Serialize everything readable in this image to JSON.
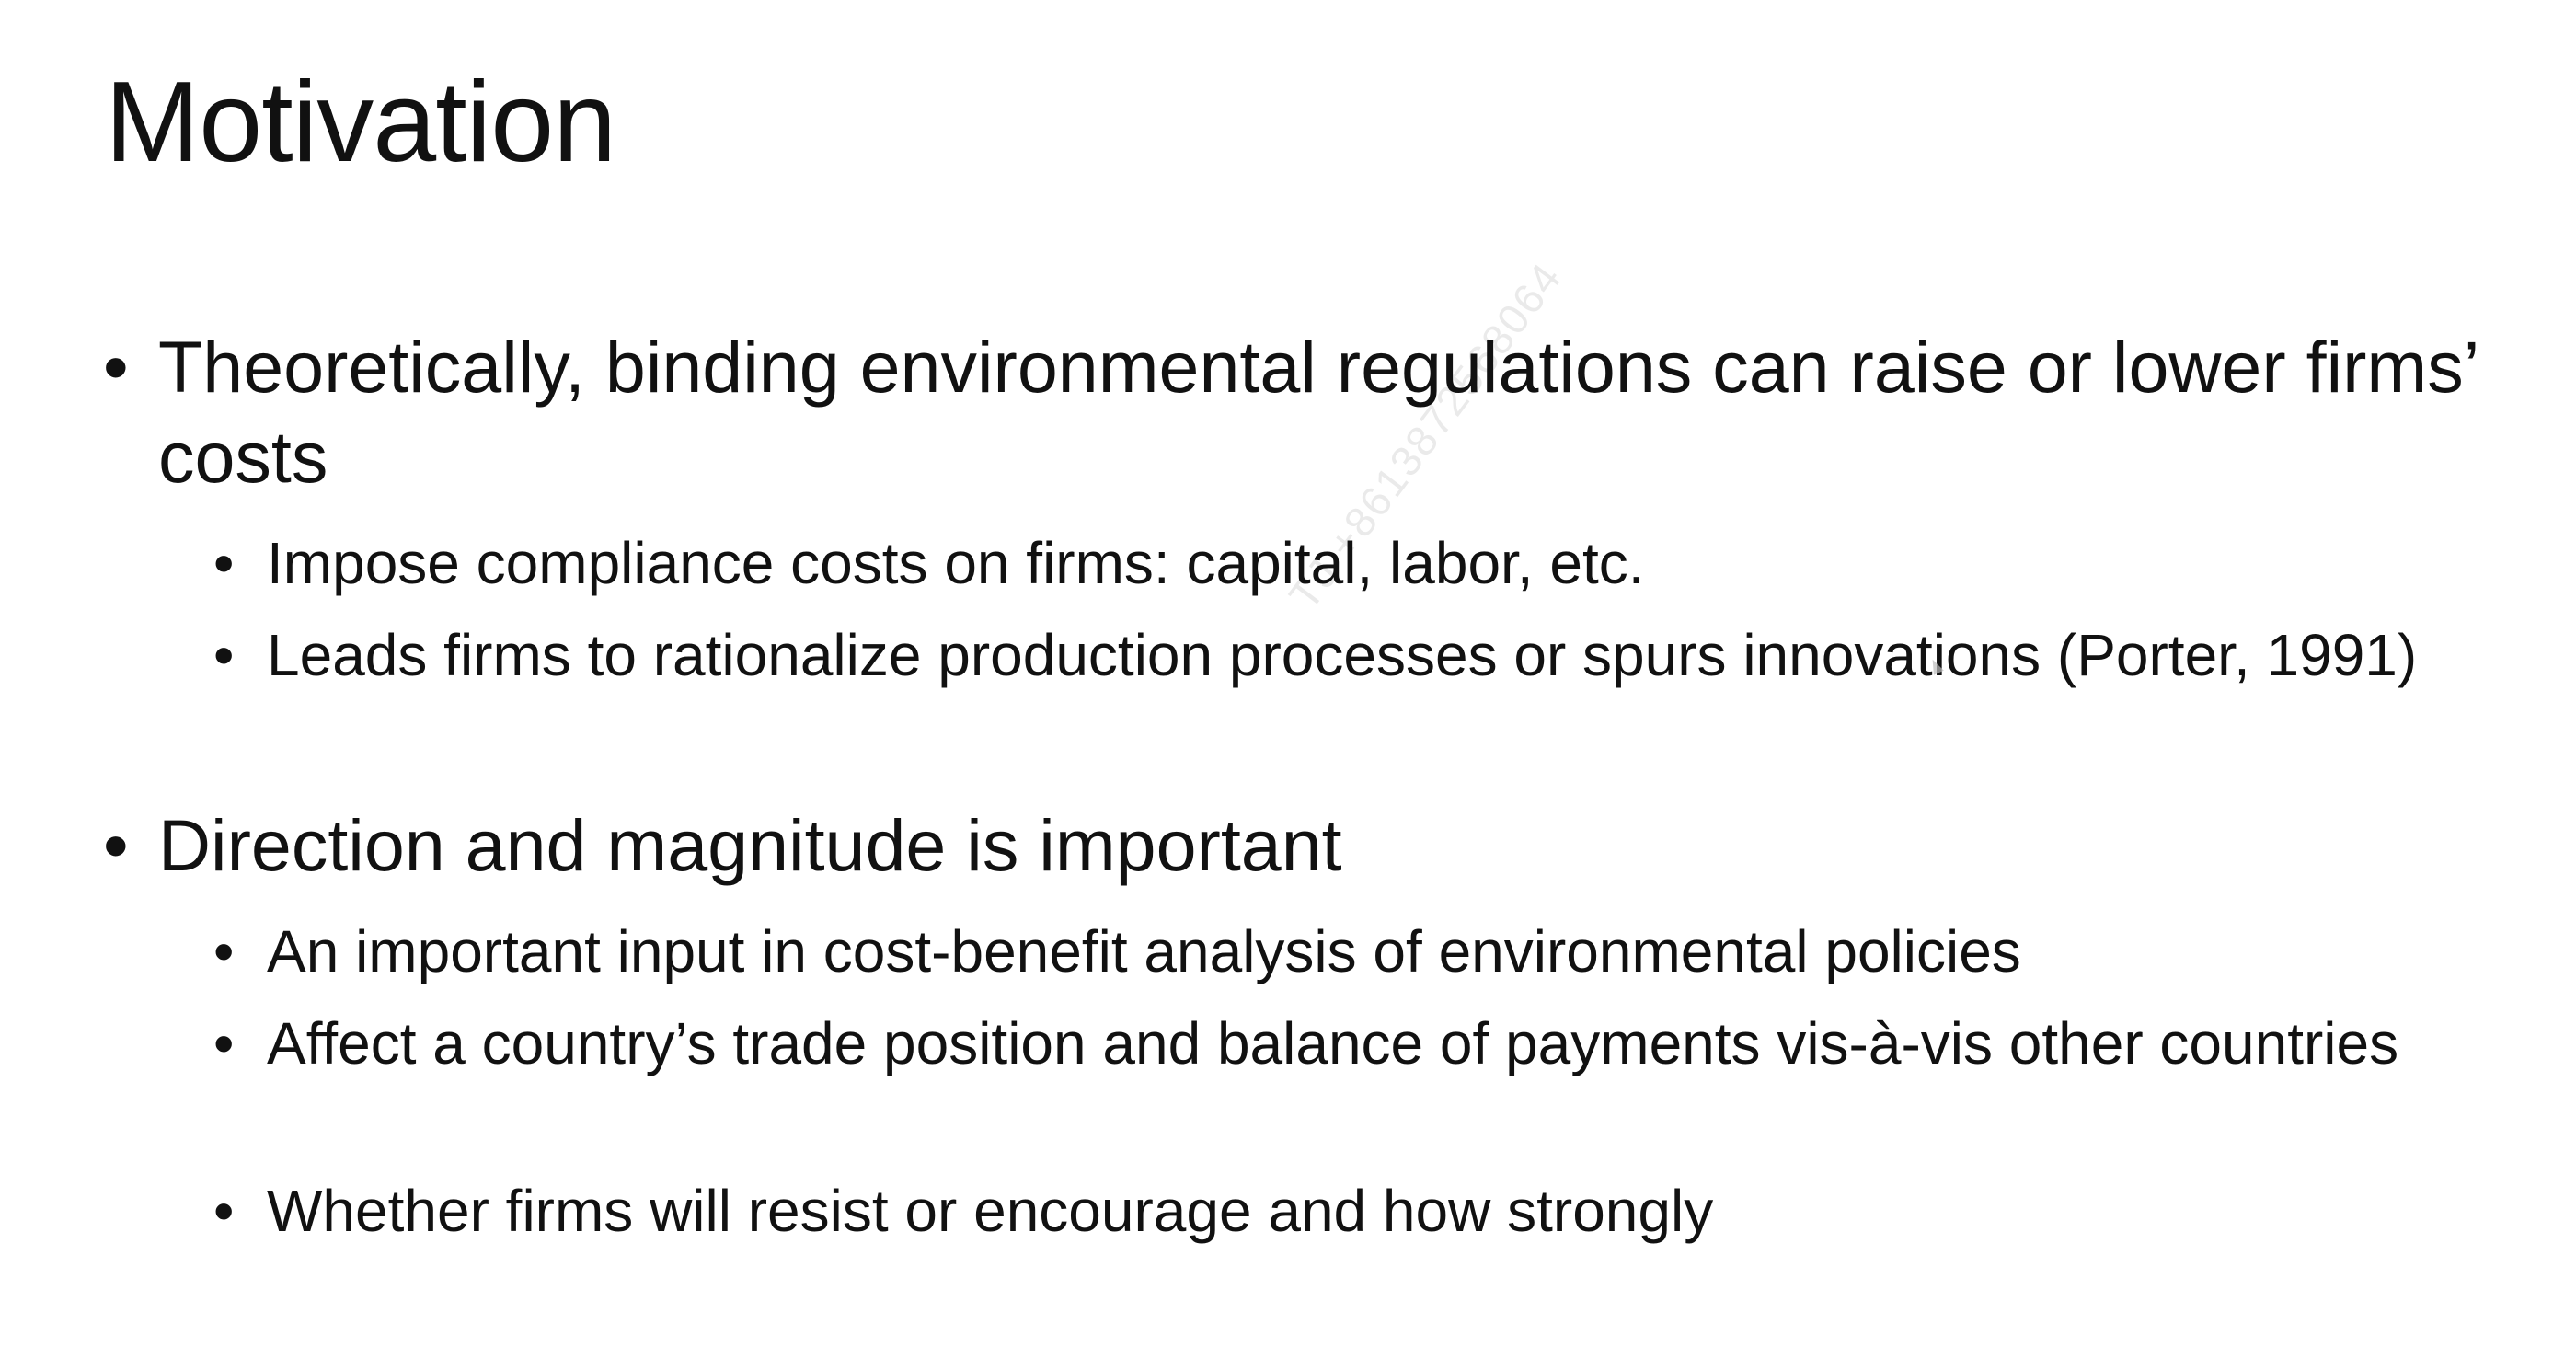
{
  "slide": {
    "title": "Motivation",
    "bullet_glyph": "•",
    "points": [
      {
        "text": "Theoretically, binding environmental regulations can raise or lower firms’ costs",
        "subpoints": [
          "Impose compliance costs on firms: capital, labor, etc.",
          "Leads firms to rationalize production processes or spurs innovations (Porter, 1991)"
        ]
      },
      {
        "text": "Direction and magnitude is important",
        "subpoints": [
          "An important input in cost-benefit analysis of environmental policies",
          "Affect a country’s trade position and balance of payments vis-à-vis other countries",
          "Whether firms will resist or encourage and how strongly"
        ]
      }
    ],
    "watermark": "TJ +8613872568064"
  },
  "colors": {
    "background": "#ffffff",
    "text": "#111111",
    "watermark": "#d9d9d9"
  }
}
